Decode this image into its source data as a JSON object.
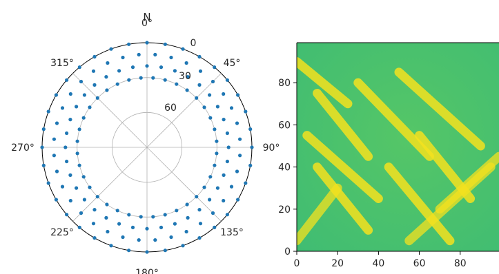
{
  "chart_data": [
    {
      "type": "scatter",
      "projection": "polar",
      "theta_zero_location": "N",
      "theta_direction": "clockwise",
      "theta_tick_labels": [
        "0°",
        "45°",
        "90°",
        "135°",
        "180°",
        "225°",
        "270°",
        "315°"
      ],
      "north_label": "N",
      "r_axis": "zenith angle (inverted: 90 at center, 0 at rim)",
      "r_range": [
        90,
        0
      ],
      "r_tick_labels": [
        "0",
        "30",
        "60"
      ],
      "marker_color": "#1f77b4",
      "grid": true,
      "series": [
        {
          "values_desc": "azimuth/zenith sample points",
          "rings": [
            {
              "zenith": 0,
              "azimuth_start": 0,
              "azimuth_step": 10,
              "count": 36
            },
            {
              "zenith": 10,
              "azimuth_start": 5,
              "azimuth_step": 10,
              "count": 36
            },
            {
              "zenith": 20,
              "azimuth_start": 0,
              "azimuth_step": 10,
              "count": 36
            },
            {
              "zenith": 30,
              "azimuth_start": 5,
              "azimuth_step": 10,
              "count": 36
            }
          ]
        }
      ]
    },
    {
      "type": "heatmap",
      "xlim": [
        0,
        99
      ],
      "ylim": [
        0,
        99
      ],
      "origin": "lower",
      "x_ticks": [
        0,
        20,
        40,
        60,
        80
      ],
      "y_ticks": [
        0,
        20,
        40,
        60,
        80
      ],
      "colormap": "viridis",
      "description_colors": {
        "low": "#3fbc73",
        "high": "#f4e21f"
      },
      "stripes": [
        {
          "orientation": "diagonal-down",
          "count": 7
        },
        {
          "orientation": "diagonal-up",
          "count": 3
        }
      ]
    }
  ]
}
